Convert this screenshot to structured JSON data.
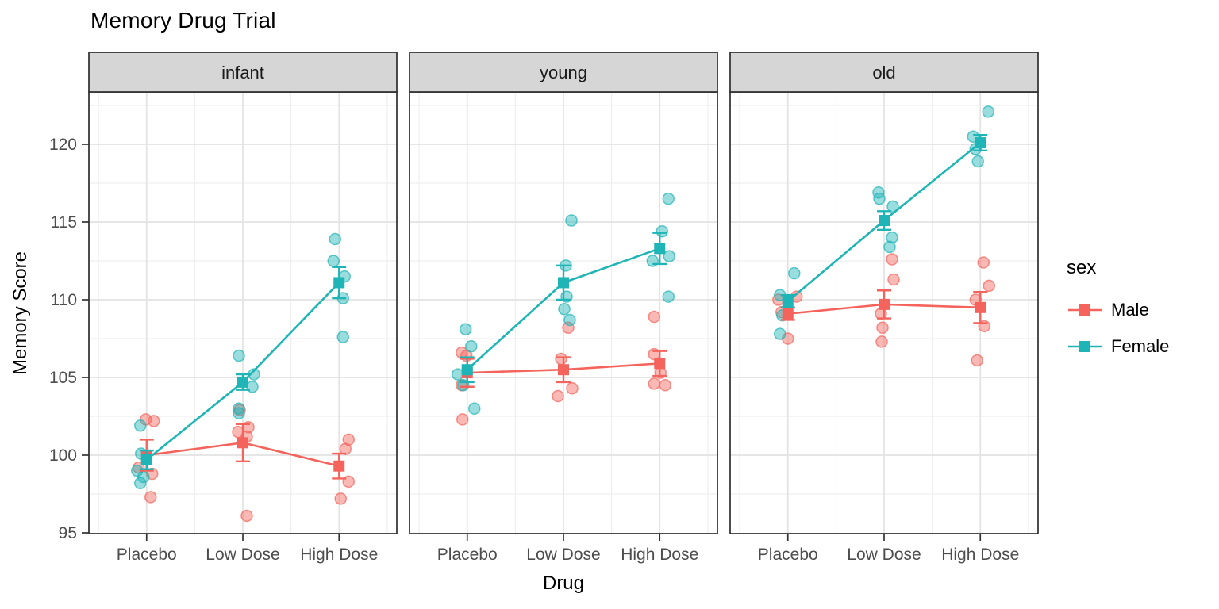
{
  "chart_data": {
    "type": "scatter",
    "title": "Memory Drug Trial",
    "xlabel": "Drug",
    "ylabel": "Memory Score",
    "facets": [
      "infant",
      "young",
      "old"
    ],
    "categories": [
      "Placebo",
      "Low Dose",
      "High Dose"
    ],
    "y_ticks": [
      95,
      100,
      105,
      110,
      115,
      120
    ],
    "ylim": [
      94.9,
      123.4
    ],
    "grid": true,
    "legend": {
      "title": "sex",
      "position": "right",
      "entries": [
        {
          "label": "Male",
          "color": "#F4645C"
        },
        {
          "label": "Female",
          "color": "#1FB4B6"
        }
      ]
    },
    "series": [
      {
        "facet": "infant",
        "sex": "Male",
        "means": [
          100.0,
          100.8,
          99.3
        ],
        "se": [
          1.0,
          1.2,
          0.8
        ],
        "points": [
          [
            [
              102.3,
              -1
            ],
            [
              102.2,
              9
            ],
            [
              99.2,
              -10
            ],
            [
              98.8,
              7
            ],
            [
              97.3,
              5
            ]
          ],
          [
            [
              102.9,
              -4
            ],
            [
              101.8,
              7
            ],
            [
              101.5,
              -6
            ],
            [
              101.2,
              5
            ],
            [
              96.1,
              5
            ]
          ],
          [
            [
              101.0,
              12
            ],
            [
              100.4,
              8
            ],
            [
              98.3,
              12
            ],
            [
              97.2,
              2
            ]
          ]
        ]
      },
      {
        "facet": "infant",
        "sex": "Female",
        "means": [
          99.7,
          104.7,
          111.1
        ],
        "se": [
          0.6,
          0.5,
          1.0
        ],
        "points": [
          [
            [
              101.9,
              -8
            ],
            [
              100.1,
              -7
            ],
            [
              99.0,
              -12
            ],
            [
              98.6,
              -4
            ],
            [
              98.2,
              -8
            ]
          ],
          [
            [
              106.4,
              -5
            ],
            [
              105.2,
              14
            ],
            [
              104.4,
              12
            ],
            [
              103.0,
              -5
            ],
            [
              102.7,
              -5
            ]
          ],
          [
            [
              113.9,
              -5
            ],
            [
              112.5,
              -7
            ],
            [
              111.5,
              7
            ],
            [
              110.1,
              5
            ],
            [
              107.6,
              5
            ]
          ]
        ]
      },
      {
        "facet": "young",
        "sex": "Male",
        "means": [
          105.3,
          105.5,
          105.9
        ],
        "se": [
          0.9,
          0.8,
          0.8
        ],
        "points": [
          [
            [
              106.6,
              -7
            ],
            [
              106.4,
              -1
            ],
            [
              104.5,
              -7
            ],
            [
              102.3,
              -6
            ]
          ],
          [
            [
              108.2,
              6
            ],
            [
              106.2,
              -3
            ],
            [
              104.3,
              11
            ],
            [
              103.8,
              -7
            ]
          ],
          [
            [
              108.9,
              -7
            ],
            [
              106.5,
              -7
            ],
            [
              105.3,
              1
            ],
            [
              104.6,
              -7
            ],
            [
              104.5,
              7
            ]
          ]
        ]
      },
      {
        "facet": "young",
        "sex": "Female",
        "means": [
          105.5,
          111.1,
          113.3
        ],
        "se": [
          0.8,
          1.1,
          1.0
        ],
        "points": [
          [
            [
              108.1,
              -2
            ],
            [
              107.0,
              5
            ],
            [
              105.2,
              -12
            ],
            [
              104.5,
              -5
            ],
            [
              103.0,
              9
            ]
          ],
          [
            [
              115.1,
              10
            ],
            [
              112.2,
              3
            ],
            [
              110.2,
              4
            ],
            [
              109.4,
              1
            ],
            [
              108.7,
              8
            ]
          ],
          [
            [
              116.5,
              11
            ],
            [
              114.4,
              3
            ],
            [
              112.8,
              12
            ],
            [
              112.5,
              -9
            ],
            [
              110.2,
              11
            ]
          ]
        ]
      },
      {
        "facet": "old",
        "sex": "Male",
        "means": [
          109.1,
          109.7,
          109.5
        ],
        "se": [
          0.4,
          0.9,
          1.0
        ],
        "points": [
          [
            [
              110.2,
              11
            ],
            [
              110.0,
              -12
            ],
            [
              109.2,
              -8
            ],
            [
              107.5,
              0
            ]
          ],
          [
            [
              112.6,
              10
            ],
            [
              111.3,
              12
            ],
            [
              109.1,
              -4
            ],
            [
              108.2,
              -2
            ],
            [
              107.3,
              -3
            ]
          ],
          [
            [
              112.4,
              4
            ],
            [
              110.9,
              11
            ],
            [
              110.0,
              -6
            ],
            [
              108.3,
              5
            ],
            [
              106.1,
              -4
            ]
          ]
        ]
      },
      {
        "facet": "old",
        "sex": "Female",
        "means": [
          109.9,
          115.1,
          120.1
        ],
        "se": [
          0.4,
          0.6,
          0.5
        ],
        "points": [
          [
            [
              111.7,
              8
            ],
            [
              110.3,
              -10
            ],
            [
              109.0,
              -7
            ],
            [
              107.8,
              -10
            ]
          ],
          [
            [
              116.9,
              -7
            ],
            [
              116.5,
              -6
            ],
            [
              116.0,
              11
            ],
            [
              114.0,
              10
            ],
            [
              113.4,
              7
            ]
          ],
          [
            [
              122.1,
              10
            ],
            [
              120.5,
              -9
            ],
            [
              119.7,
              -6
            ],
            [
              118.9,
              -3
            ]
          ]
        ]
      }
    ]
  }
}
